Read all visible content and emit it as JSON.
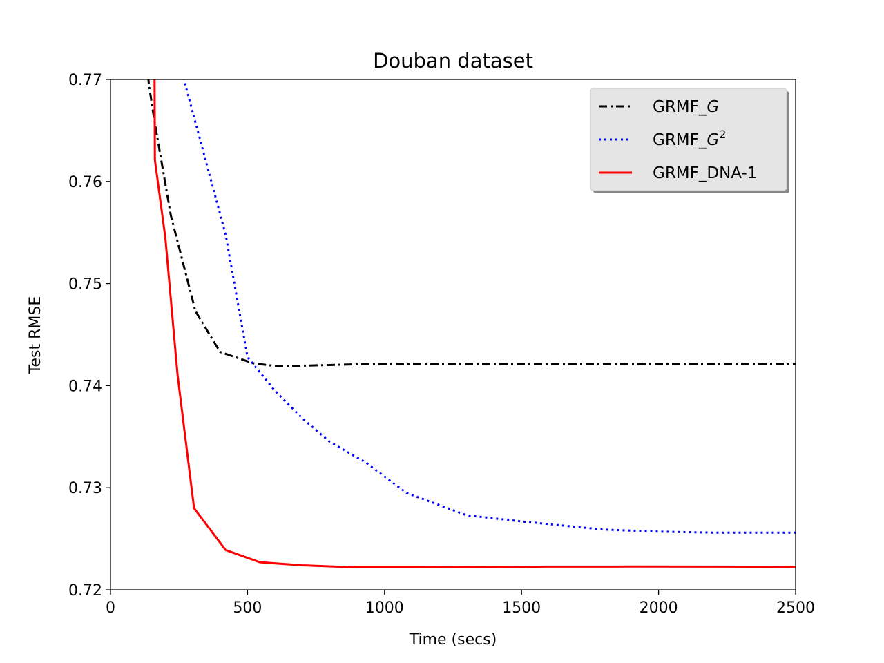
{
  "chart_data": {
    "type": "line",
    "title": "Douban dataset",
    "xlabel": "Time (secs)",
    "ylabel": "Test RMSE",
    "xlim": [
      0,
      2500
    ],
    "ylim": [
      0.72,
      0.77
    ],
    "xticks": [
      0,
      500,
      1000,
      1500,
      2000,
      2500
    ],
    "xtick_labels": [
      "0",
      "500",
      "1000",
      "1500",
      "2000",
      "2500"
    ],
    "yticks": [
      0.72,
      0.73,
      0.74,
      0.75,
      0.76,
      0.77
    ],
    "ytick_labels": [
      "0.72",
      "0.73",
      "0.74",
      "0.75",
      "0.76",
      "0.77"
    ],
    "grid": false,
    "legend_position": "top-right",
    "series": [
      {
        "name": "GRMF_",
        "name_math": "G",
        "name_sup": "",
        "color": "#000000",
        "style": "dashdot",
        "x": [
          100,
          140,
          160,
          220,
          310,
          400,
          520,
          610,
          770,
          900,
          1100,
          1300,
          1650,
          2000,
          2250,
          2500
        ],
        "y": [
          0.7805,
          0.7695,
          0.766,
          0.7567,
          0.7473,
          0.7433,
          0.7422,
          0.7419,
          0.742,
          0.7421,
          0.74215,
          0.74213,
          0.74212,
          0.74213,
          0.74215,
          0.74216
        ]
      },
      {
        "name": "GRMF_",
        "name_math": "G",
        "name_sup": "2",
        "color": "#0000ff",
        "style": "dotted",
        "x": [
          250,
          270,
          340,
          420,
          500,
          600,
          700,
          800,
          930,
          1080,
          1300,
          1500,
          1800,
          2000,
          2200,
          2500
        ],
        "y": [
          0.775,
          0.7698,
          0.7628,
          0.7548,
          0.7428,
          0.7395,
          0.7368,
          0.7345,
          0.7325,
          0.7295,
          0.7273,
          0.7267,
          0.7259,
          0.7257,
          0.7256,
          0.7256
        ]
      },
      {
        "name": "GRMF_DNA-1",
        "name_math": "",
        "name_sup": "",
        "color": "#ff0000",
        "style": "solid",
        "x": [
          160,
          162,
          200,
          245,
          305,
          420,
          545,
          700,
          900,
          1100,
          1300,
          1600,
          1900,
          2200,
          2500
        ],
        "y": [
          0.775,
          0.7621,
          0.7545,
          0.741,
          0.728,
          0.7239,
          0.7227,
          0.7224,
          0.7222,
          0.7222,
          0.72223,
          0.72227,
          0.72228,
          0.72227,
          0.72225
        ]
      }
    ]
  }
}
